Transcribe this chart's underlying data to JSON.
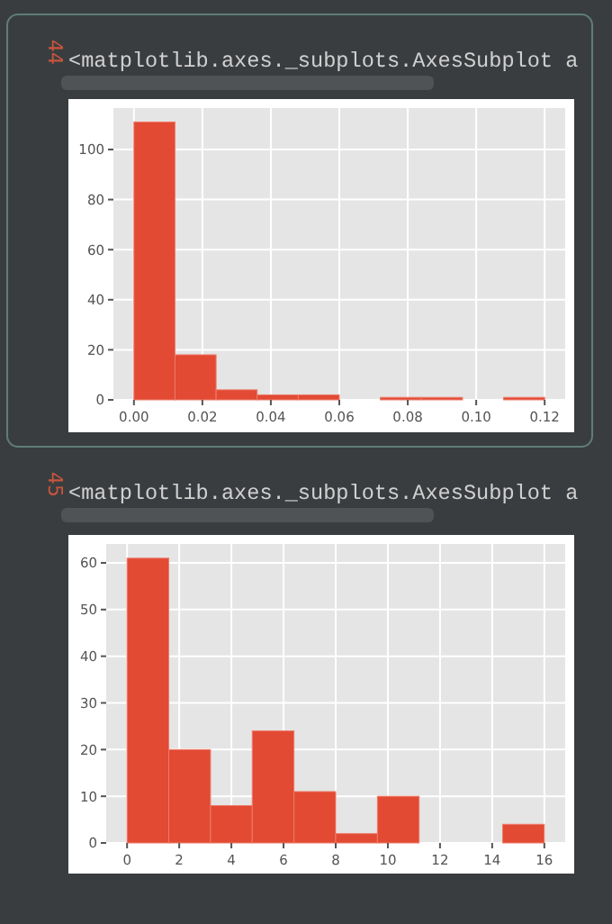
{
  "chart_data": [
    {
      "type": "histogram",
      "annotations": [
        "44",
        "<matplotlib.axes._subplots.AxesSubplot a"
      ],
      "bins": [
        0,
        0.012,
        0.024,
        0.036,
        0.048,
        0.06,
        0.072,
        0.084,
        0.096,
        0.108,
        0.12
      ],
      "values": [
        111,
        18,
        4,
        2,
        2,
        0,
        1,
        1,
        0,
        1
      ],
      "color": "#e24a33",
      "xlim": [
        -0.006,
        0.126
      ],
      "ylim": [
        0,
        116.55
      ],
      "xticks": [
        {
          "value": 0,
          "label": "0.00"
        },
        {
          "value": 0.02,
          "label": "0.02"
        },
        {
          "value": 0.04,
          "label": "0.04"
        },
        {
          "value": 0.06,
          "label": "0.06"
        },
        {
          "value": 0.08,
          "label": "0.08"
        },
        {
          "value": 0.1,
          "label": "0.10"
        },
        {
          "value": 0.12,
          "label": "0.12"
        }
      ],
      "yticks": [
        0,
        20,
        40,
        60,
        80,
        100
      ],
      "grid": true
    },
    {
      "type": "histogram",
      "annotations": [
        "45",
        "<matplotlib.axes._subplots.AxesSubplot a"
      ],
      "bins": [
        0,
        1.6,
        3.2,
        4.8,
        6.4,
        8,
        9.6,
        11.2,
        12.8,
        14.4,
        16
      ],
      "values": [
        61,
        20,
        8,
        24,
        11,
        2,
        10,
        0,
        0,
        4
      ],
      "color": "#e24a33",
      "xlim": [
        -0.8,
        16.8
      ],
      "ylim": [
        0,
        64.05
      ],
      "xticks": [
        0,
        2,
        4,
        6,
        8,
        10,
        12,
        14,
        16
      ],
      "yticks": [
        0,
        10,
        20,
        30,
        40,
        50,
        60
      ],
      "grid": true
    }
  ]
}
